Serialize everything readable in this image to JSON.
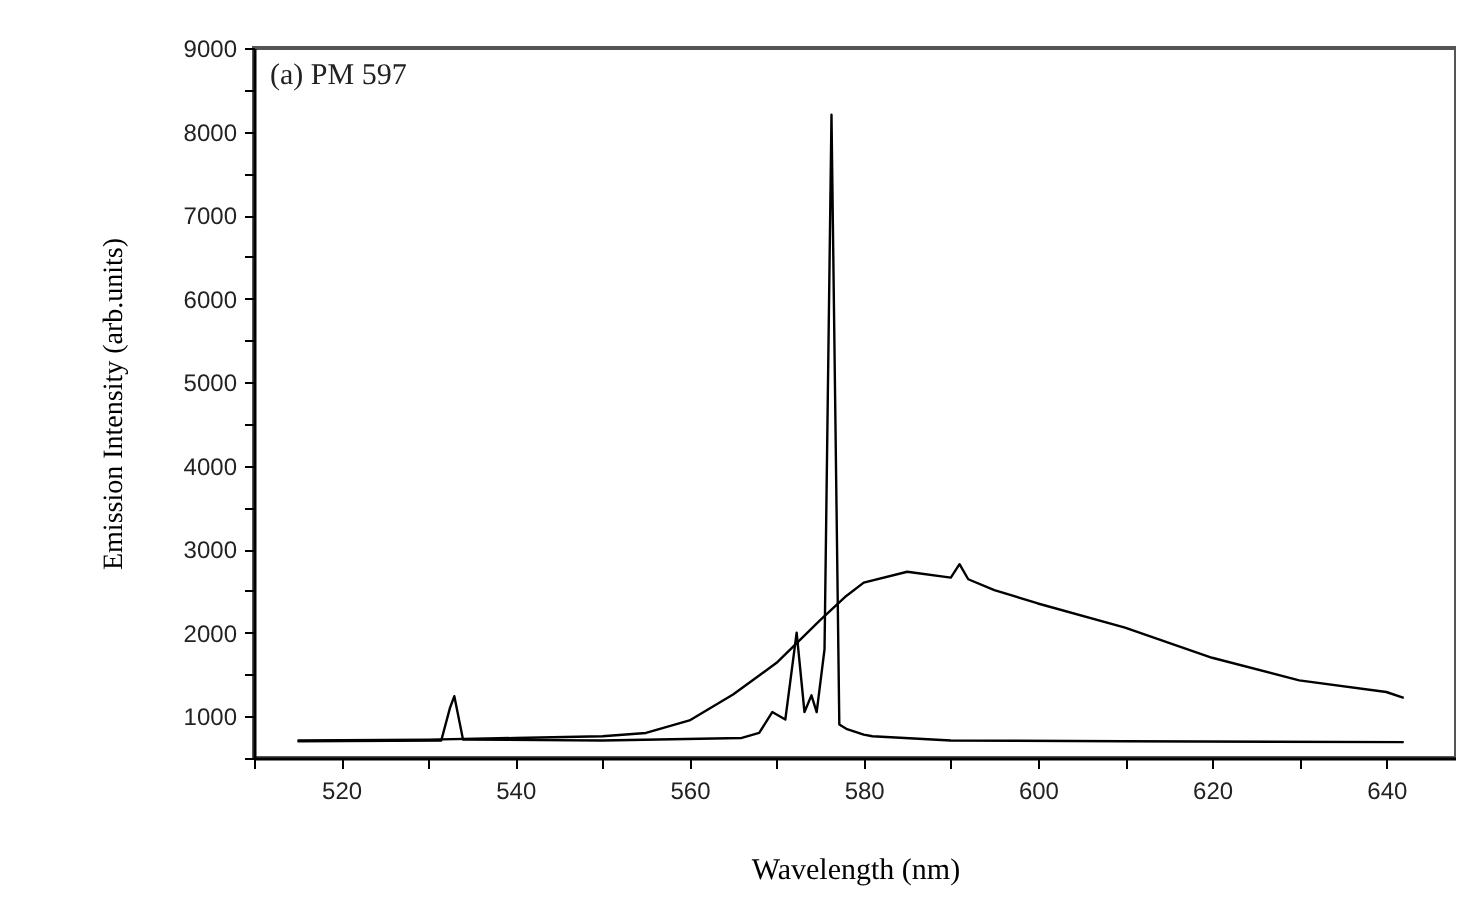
{
  "chart_data": {
    "type": "line",
    "xlabel": "Wavelength (nm)",
    "ylabel": "Emission Intensity (arb.units)",
    "annotations": [
      "(a) PM 597"
    ],
    "xlim": [
      510,
      648
    ],
    "ylim": [
      500,
      9000
    ],
    "xticks": [
      {
        "value": 510,
        "label": null
      },
      520,
      {
        "value": 530,
        "label": null
      },
      540,
      {
        "value": 550,
        "label": null
      },
      560,
      {
        "value": 570,
        "label": null
      },
      580,
      {
        "value": 590,
        "label": null
      },
      600,
      {
        "value": 610,
        "label": null
      },
      620,
      {
        "value": 630,
        "label": null
      },
      640
    ],
    "yticks": [
      {
        "value": 500,
        "label": null
      },
      1000,
      {
        "value": 1500,
        "label": null
      },
      2000,
      {
        "value": 2500,
        "label": null
      },
      3000,
      {
        "value": 3500,
        "label": null
      },
      4000,
      {
        "value": 4500,
        "label": null
      },
      5000,
      {
        "value": 5500,
        "label": null
      },
      6000,
      {
        "value": 6500,
        "label": null
      },
      7000,
      {
        "value": 7500,
        "label": null
      },
      8000,
      {
        "value": 8500,
        "label": null
      },
      9000
    ],
    "grid": false,
    "legend": false,
    "marker": "none",
    "line_style": "solid",
    "series": [
      {
        "color": "#000000",
        "x": [
          515,
          530,
          540,
          550,
          555,
          560,
          565,
          570,
          575,
          578,
          580,
          585,
          590,
          591,
          592,
          595,
          600,
          610,
          620,
          630,
          640,
          642
        ],
        "values": [
          710,
          720,
          740,
          760,
          800,
          950,
          1260,
          1640,
          2150,
          2440,
          2600,
          2730,
          2660,
          2820,
          2640,
          2510,
          2350,
          2060,
          1700,
          1430,
          1290,
          1220
        ]
      },
      {
        "color": "#000000",
        "x": [
          515,
          531.5,
          532.5,
          533,
          534,
          550,
          566,
          568,
          569.5,
          571,
          572.3,
          573.2,
          574,
          574.6,
          575.5,
          576.3,
          577.2,
          578,
          580,
          581,
          590,
          610,
          642
        ],
        "values": [
          700,
          710,
          1100,
          1240,
          720,
          710,
          740,
          800,
          1050,
          960,
          2000,
          1050,
          1250,
          1050,
          1800,
          8200,
          900,
          850,
          780,
          760,
          710,
          700,
          690
        ]
      }
    ]
  }
}
